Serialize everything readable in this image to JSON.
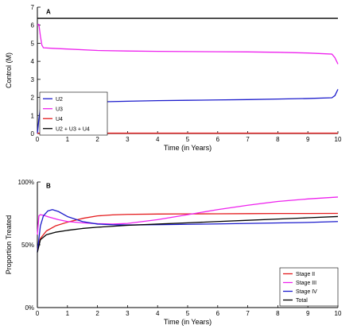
{
  "colors": {
    "red": "#e41a1c",
    "magenta": "#ee22ee",
    "blue": "#1c1ccc",
    "black": "#000000"
  },
  "chart_data": [
    {
      "panel": "A",
      "type": "line",
      "title": "",
      "xlabel": "Time (in Years)",
      "ylabel": "Control (M)",
      "xlim": [
        0,
        10
      ],
      "ylim": [
        0,
        7
      ],
      "x_ticks": [
        0,
        1,
        2,
        3,
        4,
        5,
        6,
        7,
        8,
        9,
        10
      ],
      "x_tick_labels": [
        "0",
        "1",
        "2",
        "3",
        "4",
        "5",
        "6",
        "7",
        "8",
        "9",
        "10"
      ],
      "y_ticks": [
        0,
        1,
        2,
        3,
        4,
        5,
        6,
        7
      ],
      "y_tick_labels": [
        "0",
        "1",
        "2",
        "3",
        "4",
        "5",
        "6",
        "7"
      ],
      "grid": false,
      "legend_position": "bottom-left",
      "series": [
        {
          "name": "U2",
          "color": "blue",
          "x": [
            0,
            0.05,
            0.1,
            0.2,
            0.5,
            1,
            2,
            3,
            4,
            5,
            6,
            7,
            8,
            9,
            9.8,
            9.9,
            10
          ],
          "y": [
            0,
            0.8,
            1.4,
            1.55,
            1.62,
            1.68,
            1.75,
            1.79,
            1.82,
            1.84,
            1.86,
            1.88,
            1.91,
            1.94,
            1.98,
            2.1,
            2.45
          ]
        },
        {
          "name": "U3",
          "color": "magenta",
          "x": [
            0,
            0.05,
            0.1,
            0.15,
            0.2,
            0.5,
            1,
            2,
            3,
            4,
            5,
            6,
            7,
            8,
            9,
            9.8,
            9.9,
            10
          ],
          "y": [
            6.0,
            6.05,
            5.4,
            4.9,
            4.75,
            4.72,
            4.68,
            4.6,
            4.57,
            4.55,
            4.54,
            4.53,
            4.52,
            4.5,
            4.46,
            4.4,
            4.2,
            3.85
          ]
        },
        {
          "name": "U4",
          "color": "red",
          "x": [
            0,
            10
          ],
          "y": [
            0.02,
            0.02
          ]
        },
        {
          "name": "U2 + U3 + U4",
          "color": "black",
          "x": [
            0,
            10
          ],
          "y": [
            6.38,
            6.38
          ]
        }
      ]
    },
    {
      "panel": "B",
      "type": "line",
      "title": "",
      "xlabel": "Time (in Years)",
      "ylabel": "Proportion Treated",
      "xlim": [
        0,
        10
      ],
      "ylim": [
        0,
        100
      ],
      "x_ticks": [
        0,
        1,
        2,
        3,
        4,
        5,
        6,
        7,
        8,
        9,
        10
      ],
      "x_tick_labels": [
        "0",
        "1",
        "2",
        "3",
        "4",
        "5",
        "6",
        "7",
        "8",
        "9",
        "10"
      ],
      "y_ticks": [
        0,
        50,
        100
      ],
      "y_tick_labels": [
        "0%",
        "50%",
        "100%"
      ],
      "grid": false,
      "legend_position": "bottom-right",
      "series": [
        {
          "name": "Stage II",
          "color": "red",
          "x": [
            0,
            0.1,
            0.3,
            0.6,
            1,
            1.5,
            2,
            2.5,
            3,
            4,
            5,
            6,
            7,
            8,
            9,
            10
          ],
          "y": [
            46,
            55,
            61,
            65,
            68,
            71,
            73,
            73.8,
            74.2,
            74.5,
            74.6,
            74.7,
            74.8,
            74.9,
            74.9,
            75
          ]
        },
        {
          "name": "Stage III",
          "color": "magenta",
          "x": [
            0,
            0.05,
            0.1,
            0.2,
            0.4,
            0.7,
            1,
            1.5,
            2,
            2.5,
            3,
            4,
            5,
            6,
            7,
            8,
            9,
            10
          ],
          "y": [
            58,
            73,
            74,
            73.5,
            72,
            70,
            68.5,
            67.5,
            66.8,
            66.5,
            67,
            70,
            74,
            78,
            81.5,
            84.5,
            86.5,
            88
          ]
        },
        {
          "name": "Stage IV",
          "color": "blue",
          "x": [
            0,
            0.1,
            0.2,
            0.35,
            0.5,
            0.7,
            1,
            1.5,
            2,
            2.5,
            3,
            4,
            5,
            6,
            7,
            8,
            9,
            10
          ],
          "y": [
            44,
            65,
            73,
            77,
            78,
            76.5,
            72.5,
            68.5,
            66.5,
            66,
            65.8,
            66,
            66.3,
            66.6,
            67,
            67.4,
            67.8,
            68.5
          ]
        },
        {
          "name": "Total",
          "color": "black",
          "x": [
            0,
            0.1,
            0.3,
            0.6,
            1,
            1.5,
            2,
            3,
            4,
            5,
            6,
            7,
            8,
            9,
            10
          ],
          "y": [
            44,
            54,
            58,
            60,
            61.5,
            63,
            64,
            65.5,
            66.5,
            67.5,
            68.5,
            69.5,
            70.5,
            71.5,
            72.5
          ]
        }
      ]
    }
  ]
}
